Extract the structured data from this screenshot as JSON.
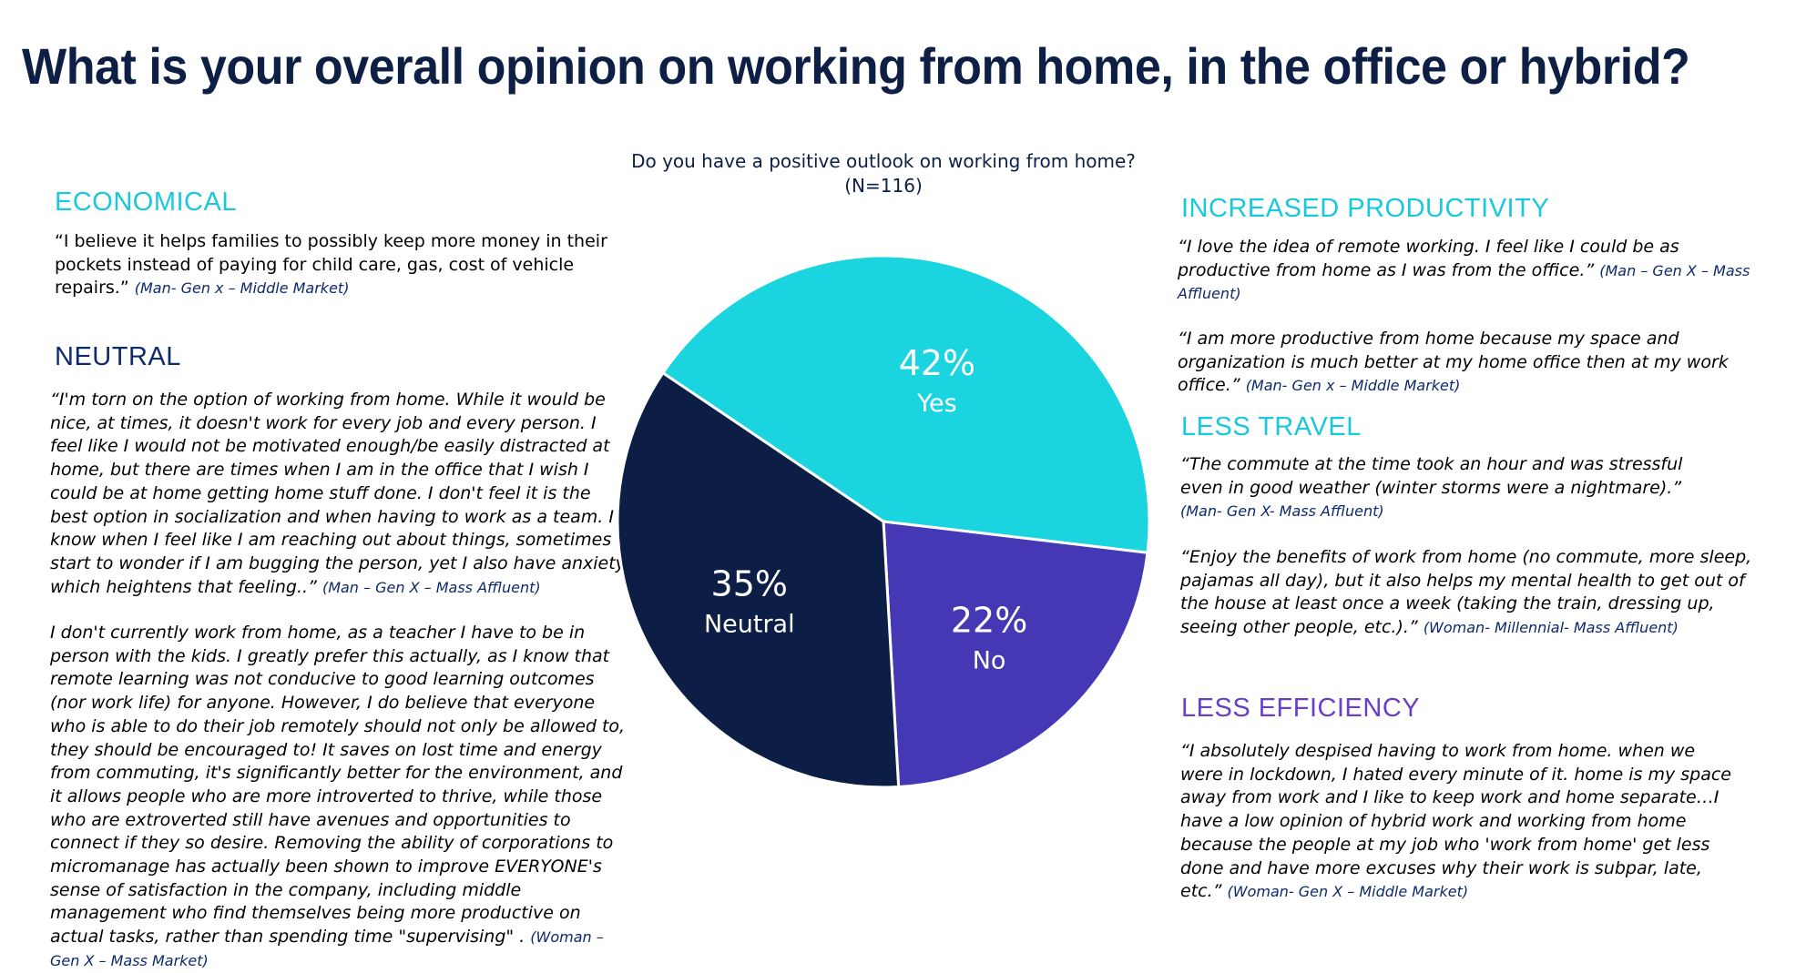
{
  "title": "What is your overall opinion on working from home, in the office or hybrid?",
  "colors": {
    "title": "#0e1f45",
    "yes": "#1ad5e0",
    "no": "#4538b4",
    "neutral": "#0c1e45",
    "economical_heading": "#1ac8dc",
    "neutral_heading": "#0e2a6e",
    "less_efficiency_heading": "#6a3fc8"
  },
  "left": {
    "economical": {
      "heading": "ECONOMICAL",
      "quote": "“I believe it helps families to possibly keep more money in their pockets instead of paying for child care, gas, cost of vehicle repairs.”",
      "attribution": "(Man- Gen x – Middle Market)"
    },
    "neutral": {
      "heading": "NEUTRAL",
      "quote1": "“I'm torn on the option of working from home. While it would be nice, at times, it doesn't work for every job and every person. I feel like I would not be motivated enough/be easily distracted at home, but there are times when I am in the office that I wish I could be at home getting home stuff done. I don't feel it is the best option in socialization and when having to work as a team. I know when I feel like I am reaching out about things, sometimes I start to wonder if I am bugging the person, yet I also have anxiety, which heightens that feeling..”",
      "attribution1": "(Man – Gen X – Mass Affluent)",
      "quote2": "I don't currently work from home, as a teacher I have to be in person with the kids. I greatly prefer this actually, as I know that remote learning was not conducive to good learning outcomes (nor work life) for anyone. However, I do believe that everyone who is able to do their job remotely should not only be allowed to, they should be encouraged to! It saves on lost time and energy from commuting, it's significantly better for the environment, and it allows people who are more introverted to thrive, while those who are extroverted still have avenues and opportunities to connect if they so desire. Removing the ability of corporations to micromanage has actually been shown to improve EVERYONE's sense of satisfaction in the company, including middle management who find themselves being more productive on actual tasks, rather than spending time \"supervising\" .",
      "attribution2": "(Woman – Gen X – Mass Market)"
    }
  },
  "right": {
    "increased_productivity": {
      "heading": "INCREASED PRODUCTIVITY",
      "quote1": "“I love the idea of remote working.  I feel like I could be as productive from home as I was from the office.”",
      "attribution1": "(Man – Gen X – Mass Affluent)",
      "quote2": "“I am more productive from home because my space and organization is much better at my home office then at my work office.”",
      "attribution2": "(Man- Gen x – Middle Market)"
    },
    "less_travel": {
      "heading": "LESS TRAVEL",
      "quote1": "“The commute at the time took an hour and was stressful even in good weather (winter storms were a nightmare).”",
      "attribution1": "(Man- Gen X- Mass Affluent)",
      "quote2": "“Enjoy the benefits of work from home (no commute, more sleep, pajamas all day), but it also helps my mental health to get out of the house at least once a week (taking the train, dressing up, seeing other people, etc.).”",
      "attribution2": "(Woman- Millennial- Mass Affluent)"
    },
    "less_efficiency": {
      "heading": "LESS EFFICIENCY",
      "quote": "“I absolutely despised having to work from home. when we were in lockdown, I hated every minute of it. home is my space away from work and I like to keep work and home separate…I have a low opinion of hybrid work and working from home because the people at my job who 'work from home' get less done and have more excuses why their work is subpar, late, etc.”",
      "attribution": "(Woman- Gen X – Middle Market)"
    }
  },
  "chart_data": {
    "type": "pie",
    "title": "Do you have a positive outlook on working from home?",
    "subtitle": "(N=116)",
    "slices": [
      {
        "label": "Yes",
        "value": 42,
        "value_label": "42%",
        "color": "#1ad5e0"
      },
      {
        "label": "No",
        "value": 22,
        "value_label": "22%",
        "color": "#4538b4"
      },
      {
        "label": "Neutral",
        "value": 35,
        "value_label": "35%",
        "color": "#0c1e45"
      }
    ]
  }
}
